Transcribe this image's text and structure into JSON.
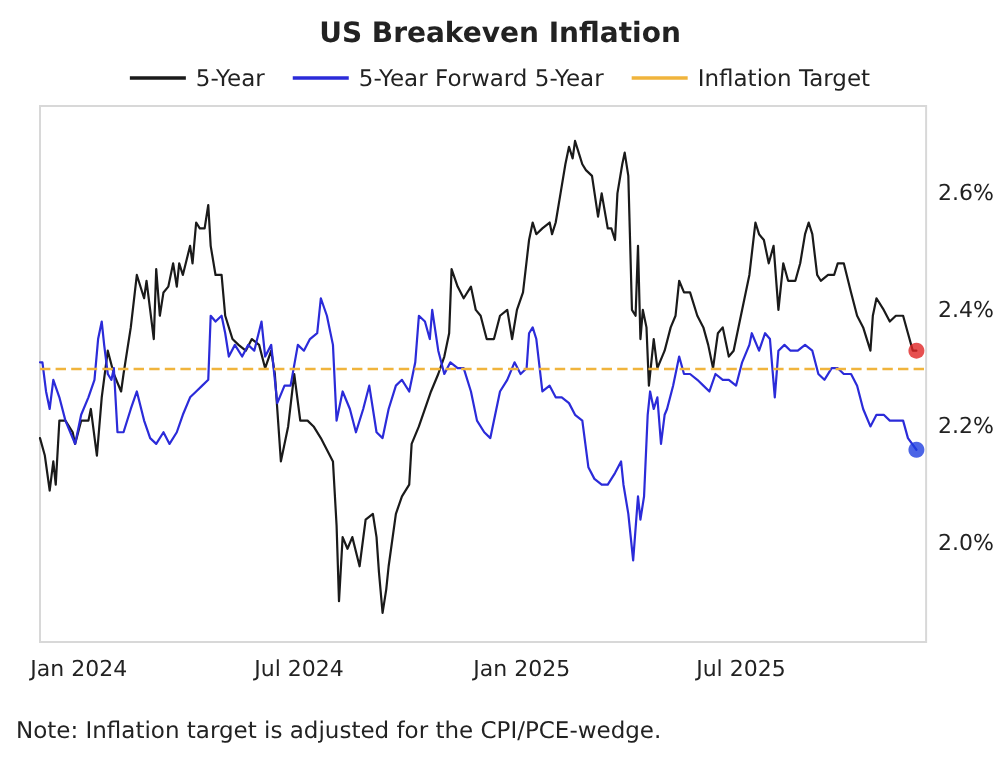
{
  "chart_data": {
    "type": "line",
    "title": "US Breakeven Inflation",
    "annotations": [
      "Note: Inflation target is adjusted for the CPI/PCE-wedge."
    ],
    "xlim": [
      "2023-11-30",
      "2025-12-01"
    ],
    "xticks": [
      {
        "value": "2024-01-01",
        "label": "Jan 2024"
      },
      {
        "value": "2024-07-01",
        "label": "Jul 2024"
      },
      {
        "value": "2025-01-01",
        "label": "Jan 2025"
      },
      {
        "value": "2025-07-01",
        "label": "Jul 2025"
      }
    ],
    "ylim": [
      1.83,
      2.75
    ],
    "yticks": [
      {
        "value": 2.0,
        "label": "2.0%"
      },
      {
        "value": 2.2,
        "label": "2.2%"
      },
      {
        "value": 2.4,
        "label": "2.4%"
      },
      {
        "value": 2.6,
        "label": "2.6%"
      }
    ],
    "grid": false,
    "legend": "top",
    "marker": "none",
    "line_style": "solid",
    "ref_lines": [
      {
        "axis": "y",
        "value": 2.3,
        "label": "Inflation Target",
        "color": "#f0b43c",
        "line_style": "dashed"
      }
    ],
    "series": [
      {
        "name": "5-Year",
        "color": "#1a1a1a",
        "x": [
          "2023-11-30",
          "2023-12-04",
          "2023-12-08",
          "2023-12-11",
          "2023-12-13",
          "2023-12-16",
          "2023-12-21",
          "2023-12-27",
          "2023-12-29",
          "2024-01-03",
          "2024-01-09",
          "2024-01-11",
          "2024-01-16",
          "2024-01-20",
          "2024-01-25",
          "2024-01-30",
          "2024-02-05",
          "2024-02-07",
          "2024-02-10",
          "2024-02-13",
          "2024-02-18",
          "2024-02-24",
          "2024-02-26",
          "2024-02-29",
          "2024-03-03",
          "2024-03-05",
          "2024-03-08",
          "2024-03-11",
          "2024-03-15",
          "2024-03-19",
          "2024-03-22",
          "2024-03-24",
          "2024-03-27",
          "2024-04-02",
          "2024-04-04",
          "2024-04-07",
          "2024-04-10",
          "2024-04-14",
          "2024-04-17",
          "2024-04-19",
          "2024-04-23",
          "2024-04-28",
          "2024-05-01",
          "2024-05-07",
          "2024-05-12",
          "2024-05-18",
          "2024-05-23",
          "2024-05-29",
          "2024-06-03",
          "2024-06-08",
          "2024-06-11",
          "2024-06-16",
          "2024-06-22",
          "2024-06-27",
          "2024-07-02",
          "2024-07-08",
          "2024-07-13",
          "2024-07-19",
          "2024-07-24",
          "2024-07-29",
          "2024-08-01",
          "2024-08-03",
          "2024-08-06",
          "2024-08-10",
          "2024-08-14",
          "2024-08-20",
          "2024-08-25",
          "2024-08-31",
          "2024-09-03",
          "2024-09-05",
          "2024-09-08",
          "2024-09-11",
          "2024-09-13",
          "2024-09-19",
          "2024-09-24",
          "2024-09-30",
          "2024-10-02",
          "2024-10-08",
          "2024-10-13",
          "2024-10-18",
          "2024-10-24",
          "2024-10-29",
          "2024-11-02",
          "2024-11-04",
          "2024-11-09",
          "2024-11-14",
          "2024-11-20",
          "2024-11-24",
          "2024-11-28",
          "2024-12-03",
          "2024-12-09",
          "2024-12-14",
          "2024-12-20",
          "2024-12-24",
          "2024-12-28",
          "2025-01-02",
          "2025-01-07",
          "2025-01-10",
          "2025-01-13",
          "2025-01-18",
          "2025-01-24",
          "2025-01-26",
          "2025-01-29",
          "2025-02-02",
          "2025-02-06",
          "2025-02-09",
          "2025-02-12",
          "2025-02-14",
          "2025-02-17",
          "2025-02-20",
          "2025-02-23",
          "2025-02-28",
          "2025-03-05",
          "2025-03-08",
          "2025-03-13",
          "2025-03-16",
          "2025-03-19",
          "2025-03-21",
          "2025-03-25",
          "2025-03-27",
          "2025-03-30",
          "2025-04-02",
          "2025-04-05",
          "2025-04-07",
          "2025-04-09",
          "2025-04-11",
          "2025-04-14",
          "2025-04-16",
          "2025-04-20",
          "2025-04-23",
          "2025-04-29",
          "2025-05-04",
          "2025-05-08",
          "2025-05-11",
          "2025-05-15",
          "2025-05-20",
          "2025-05-26",
          "2025-05-31",
          "2025-06-04",
          "2025-06-08",
          "2025-06-12",
          "2025-06-16",
          "2025-06-21",
          "2025-06-25",
          "2025-06-30",
          "2025-07-04",
          "2025-07-08",
          "2025-07-13",
          "2025-07-16",
          "2025-07-20",
          "2025-07-24",
          "2025-07-28",
          "2025-08-01",
          "2025-08-05",
          "2025-08-09",
          "2025-08-15",
          "2025-08-19",
          "2025-08-23",
          "2025-08-26",
          "2025-08-29",
          "2025-09-02",
          "2025-09-05",
          "2025-09-11",
          "2025-09-16",
          "2025-09-19",
          "2025-09-24",
          "2025-09-30",
          "2025-10-05",
          "2025-10-10",
          "2025-10-16",
          "2025-10-18",
          "2025-10-21",
          "2025-10-27",
          "2025-11-01",
          "2025-11-06",
          "2025-11-12",
          "2025-11-16",
          "2025-11-20",
          "2025-11-23"
        ],
        "values": [
          2.18,
          2.15,
          2.09,
          2.14,
          2.1,
          2.21,
          2.21,
          2.19,
          2.17,
          2.21,
          2.21,
          2.23,
          2.15,
          2.25,
          2.33,
          2.29,
          2.26,
          2.29,
          2.33,
          2.37,
          2.46,
          2.42,
          2.45,
          2.4,
          2.35,
          2.47,
          2.39,
          2.43,
          2.44,
          2.48,
          2.44,
          2.48,
          2.46,
          2.51,
          2.48,
          2.55,
          2.54,
          2.54,
          2.58,
          2.51,
          2.46,
          2.46,
          2.39,
          2.35,
          2.34,
          2.33,
          2.35,
          2.34,
          2.3,
          2.33,
          2.29,
          2.14,
          2.2,
          2.29,
          2.21,
          2.21,
          2.2,
          2.18,
          2.16,
          2.14,
          2.03,
          1.9,
          2.01,
          1.99,
          2.01,
          1.96,
          2.04,
          2.05,
          2.01,
          1.95,
          1.88,
          1.92,
          1.96,
          2.05,
          2.08,
          2.1,
          2.17,
          2.2,
          2.23,
          2.26,
          2.29,
          2.32,
          2.36,
          2.47,
          2.44,
          2.42,
          2.44,
          2.4,
          2.39,
          2.35,
          2.35,
          2.39,
          2.4,
          2.35,
          2.4,
          2.43,
          2.52,
          2.55,
          2.53,
          2.54,
          2.55,
          2.53,
          2.55,
          2.6,
          2.65,
          2.68,
          2.66,
          2.69,
          2.67,
          2.65,
          2.64,
          2.63,
          2.56,
          2.6,
          2.54,
          2.54,
          2.52,
          2.6,
          2.65,
          2.67,
          2.63,
          2.4,
          2.39,
          2.51,
          2.35,
          2.4,
          2.37,
          2.27,
          2.35,
          2.3,
          2.33,
          2.37,
          2.39,
          2.45,
          2.43,
          2.43,
          2.39,
          2.37,
          2.34,
          2.3,
          2.36,
          2.37,
          2.32,
          2.33,
          2.38,
          2.42,
          2.46,
          2.55,
          2.53,
          2.52,
          2.48,
          2.51,
          2.4,
          2.48,
          2.45,
          2.45,
          2.48,
          2.53,
          2.55,
          2.53,
          2.46,
          2.45,
          2.46,
          2.46,
          2.48,
          2.48,
          2.43,
          2.39,
          2.37,
          2.33,
          2.39,
          2.42,
          2.4,
          2.38,
          2.39,
          2.39,
          2.36,
          2.33,
          2.33
        ]
      },
      {
        "name": "5-Year Forward 5-Year",
        "color": "#2b2bd9",
        "x": [
          "2023-11-30",
          "2023-12-02",
          "2023-12-05",
          "2023-12-08",
          "2023-12-11",
          "2023-12-16",
          "2023-12-21",
          "2023-12-25",
          "2023-12-29",
          "2024-01-03",
          "2024-01-09",
          "2024-01-14",
          "2024-01-17",
          "2024-01-20",
          "2024-01-22",
          "2024-01-25",
          "2024-01-28",
          "2024-01-30",
          "2024-02-02",
          "2024-02-07",
          "2024-02-13",
          "2024-02-18",
          "2024-02-24",
          "2024-02-29",
          "2024-03-05",
          "2024-03-11",
          "2024-03-16",
          "2024-03-22",
          "2024-03-27",
          "2024-04-02",
          "2024-04-07",
          "2024-04-12",
          "2024-04-17",
          "2024-04-19",
          "2024-04-23",
          "2024-04-28",
          "2024-05-01",
          "2024-05-04",
          "2024-05-09",
          "2024-05-15",
          "2024-05-20",
          "2024-05-25",
          "2024-05-31",
          "2024-06-03",
          "2024-06-08",
          "2024-06-13",
          "2024-06-19",
          "2024-06-24",
          "2024-06-30",
          "2024-07-05",
          "2024-07-10",
          "2024-07-16",
          "2024-07-19",
          "2024-07-24",
          "2024-07-29",
          "2024-08-01",
          "2024-08-06",
          "2024-08-12",
          "2024-08-17",
          "2024-08-23",
          "2024-08-28",
          "2024-09-03",
          "2024-09-08",
          "2024-09-13",
          "2024-09-19",
          "2024-09-24",
          "2024-09-30",
          "2024-10-05",
          "2024-10-08",
          "2024-10-13",
          "2024-10-17",
          "2024-10-19",
          "2024-10-24",
          "2024-10-29",
          "2024-11-03",
          "2024-11-09",
          "2024-11-14",
          "2024-11-20",
          "2024-11-25",
          "2024-12-01",
          "2024-12-06",
          "2024-12-14",
          "2024-12-20",
          "2024-12-26",
          "2024-12-31",
          "2025-01-05",
          "2025-01-07",
          "2025-01-10",
          "2025-01-13",
          "2025-01-18",
          "2025-01-24",
          "2025-01-29",
          "2025-02-03",
          "2025-02-09",
          "2025-02-14",
          "2025-02-20",
          "2025-02-25",
          "2025-03-02",
          "2025-03-08",
          "2025-03-13",
          "2025-03-19",
          "2025-03-24",
          "2025-03-26",
          "2025-03-30",
          "2025-04-03",
          "2025-04-07",
          "2025-04-09",
          "2025-04-12",
          "2025-04-15",
          "2025-04-17",
          "2025-04-20",
          "2025-04-23",
          "2025-04-26",
          "2025-04-29",
          "2025-05-01",
          "2025-05-06",
          "2025-05-11",
          "2025-05-15",
          "2025-05-20",
          "2025-05-26",
          "2025-05-31",
          "2025-06-05",
          "2025-06-10",
          "2025-06-16",
          "2025-06-21",
          "2025-06-27",
          "2025-07-02",
          "2025-07-08",
          "2025-07-10",
          "2025-07-16",
          "2025-07-21",
          "2025-07-25",
          "2025-07-29",
          "2025-08-01",
          "2025-08-06",
          "2025-08-11",
          "2025-08-17",
          "2025-08-23",
          "2025-08-29",
          "2025-09-03",
          "2025-09-08",
          "2025-09-14",
          "2025-09-19",
          "2025-09-24",
          "2025-09-30",
          "2025-10-05",
          "2025-10-10",
          "2025-10-16",
          "2025-10-21",
          "2025-10-27",
          "2025-11-01",
          "2025-11-06",
          "2025-11-12",
          "2025-11-16",
          "2025-11-23"
        ],
        "values": [
          2.31,
          2.31,
          2.26,
          2.23,
          2.28,
          2.25,
          2.21,
          2.19,
          2.17,
          2.22,
          2.25,
          2.28,
          2.35,
          2.38,
          2.34,
          2.29,
          2.28,
          2.3,
          2.19,
          2.19,
          2.23,
          2.26,
          2.21,
          2.18,
          2.17,
          2.19,
          2.17,
          2.19,
          2.22,
          2.25,
          2.26,
          2.27,
          2.28,
          2.39,
          2.38,
          2.39,
          2.36,
          2.32,
          2.34,
          2.32,
          2.34,
          2.33,
          2.38,
          2.32,
          2.34,
          2.24,
          2.27,
          2.27,
          2.34,
          2.33,
          2.35,
          2.36,
          2.42,
          2.39,
          2.34,
          2.21,
          2.26,
          2.23,
          2.19,
          2.23,
          2.27,
          2.19,
          2.18,
          2.23,
          2.27,
          2.28,
          2.26,
          2.31,
          2.39,
          2.38,
          2.35,
          2.4,
          2.33,
          2.29,
          2.31,
          2.3,
          2.3,
          2.26,
          2.21,
          2.19,
          2.18,
          2.26,
          2.28,
          2.31,
          2.29,
          2.3,
          2.36,
          2.37,
          2.35,
          2.26,
          2.27,
          2.25,
          2.25,
          2.24,
          2.22,
          2.21,
          2.13,
          2.11,
          2.1,
          2.1,
          2.12,
          2.14,
          2.1,
          2.05,
          1.97,
          2.08,
          2.04,
          2.08,
          2.22,
          2.26,
          2.23,
          2.25,
          2.17,
          2.22,
          2.23,
          2.27,
          2.32,
          2.29,
          2.29,
          2.28,
          2.27,
          2.26,
          2.29,
          2.28,
          2.28,
          2.27,
          2.31,
          2.34,
          2.36,
          2.33,
          2.36,
          2.35,
          2.25,
          2.33,
          2.34,
          2.33,
          2.33,
          2.34,
          2.33,
          2.29,
          2.28,
          2.3,
          2.3,
          2.29,
          2.29,
          2.27,
          2.23,
          2.2,
          2.22,
          2.22,
          2.21,
          2.21,
          2.21,
          2.18,
          2.16
        ]
      },
      {
        "type": "scatter",
        "marker": "circle",
        "color": "#e02424",
        "x": [
          "2025-11-23"
        ],
        "values": [
          2.33
        ]
      },
      {
        "type": "scatter",
        "marker": "circle",
        "color": "#1f3fe0",
        "x": [
          "2025-11-23"
        ],
        "values": [
          2.16
        ]
      }
    ]
  }
}
